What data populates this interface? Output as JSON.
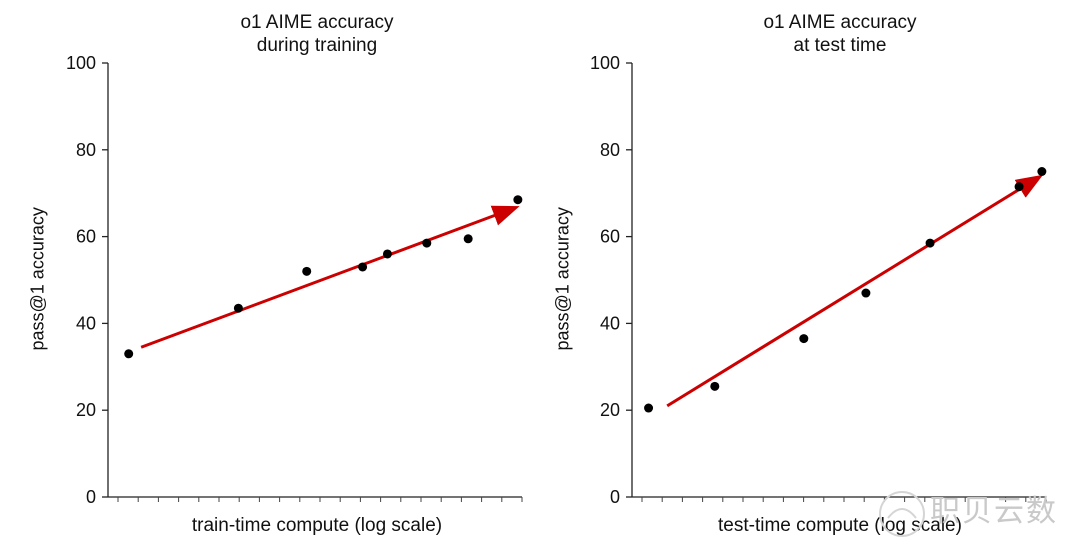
{
  "chart_data": [
    {
      "type": "scatter",
      "title_lines": [
        "o1 AIME accuracy",
        "during training"
      ],
      "xlabel": "train-time compute (log scale)",
      "ylabel": "pass@1 accuracy",
      "ylim": [
        0,
        100
      ],
      "yticks": [
        0,
        20,
        40,
        60,
        80,
        100
      ],
      "xscale": "log",
      "x_minor_ticks": 21,
      "points": [
        {
          "x": 0.05,
          "y": 33
        },
        {
          "x": 0.315,
          "y": 43.5
        },
        {
          "x": 0.48,
          "y": 52
        },
        {
          "x": 0.615,
          "y": 53
        },
        {
          "x": 0.675,
          "y": 56
        },
        {
          "x": 0.77,
          "y": 58.5
        },
        {
          "x": 0.87,
          "y": 59.5
        },
        {
          "x": 0.99,
          "y": 68.5
        }
      ],
      "trend": {
        "from": {
          "x": 0.08,
          "y": 34.5
        },
        "to": {
          "x": 1.0,
          "y": 67
        },
        "color": "#cc0000"
      },
      "grid": false
    },
    {
      "type": "scatter",
      "title_lines": [
        "o1 AIME accuracy",
        "at test time"
      ],
      "xlabel": "test-time compute (log scale)",
      "ylabel": "pass@1 accuracy",
      "ylim": [
        0,
        100
      ],
      "yticks": [
        0,
        20,
        40,
        60,
        80,
        100
      ],
      "xscale": "log",
      "x_minor_ticks": 21,
      "points": [
        {
          "x": 0.04,
          "y": 20.5
        },
        {
          "x": 0.2,
          "y": 25.5
        },
        {
          "x": 0.415,
          "y": 36.5
        },
        {
          "x": 0.565,
          "y": 47
        },
        {
          "x": 0.72,
          "y": 58.5
        },
        {
          "x": 0.935,
          "y": 71.5
        },
        {
          "x": 0.99,
          "y": 75
        }
      ],
      "trend": {
        "from": {
          "x": 0.085,
          "y": 21
        },
        "to": {
          "x": 1.0,
          "y": 74
        },
        "color": "#cc0000"
      },
      "grid": false
    }
  ],
  "watermark": {
    "text": "职贝云数"
  }
}
